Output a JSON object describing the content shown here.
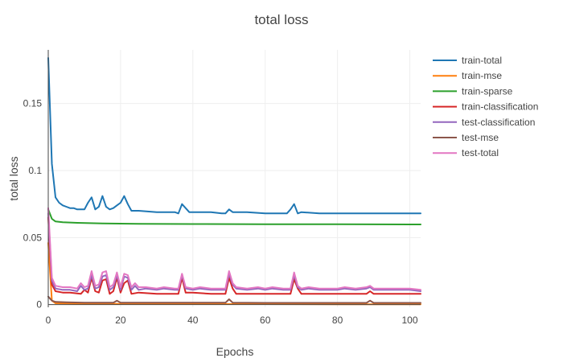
{
  "chart_data": {
    "type": "line",
    "title": "total loss",
    "xlabel": "Epochs",
    "ylabel": "total loss",
    "xlim": [
      0,
      103
    ],
    "ylim": [
      -0.002,
      0.19
    ],
    "x_ticks": [
      0,
      20,
      40,
      60,
      80,
      100
    ],
    "x_tick_labels": [
      "0",
      "20",
      "40",
      "60",
      "80",
      "100"
    ],
    "y_ticks": [
      0,
      0.05,
      0.1,
      0.15
    ],
    "y_tick_labels": [
      "0",
      "0.05",
      "0.1",
      "0.15"
    ],
    "grid": true,
    "legend_position": "right",
    "series": [
      {
        "name": "train-total",
        "color": "#1f77b4",
        "points": [
          [
            0,
            0.184
          ],
          [
            1,
            0.105
          ],
          [
            2,
            0.08
          ],
          [
            3,
            0.076
          ],
          [
            4,
            0.074
          ],
          [
            5,
            0.073
          ],
          [
            6,
            0.072
          ],
          [
            7,
            0.072
          ],
          [
            8,
            0.071
          ],
          [
            9,
            0.071
          ],
          [
            10,
            0.071
          ],
          [
            11,
            0.076
          ],
          [
            12,
            0.08
          ],
          [
            13,
            0.071
          ],
          [
            14,
            0.073
          ],
          [
            15,
            0.081
          ],
          [
            16,
            0.073
          ],
          [
            17,
            0.071
          ],
          [
            18,
            0.072
          ],
          [
            19,
            0.074
          ],
          [
            20,
            0.076
          ],
          [
            21,
            0.081
          ],
          [
            22,
            0.075
          ],
          [
            23,
            0.07
          ],
          [
            25,
            0.07
          ],
          [
            30,
            0.069
          ],
          [
            35,
            0.069
          ],
          [
            36,
            0.068
          ],
          [
            37,
            0.075
          ],
          [
            38,
            0.072
          ],
          [
            39,
            0.069
          ],
          [
            40,
            0.069
          ],
          [
            45,
            0.069
          ],
          [
            48,
            0.068
          ],
          [
            49,
            0.068
          ],
          [
            50,
            0.071
          ],
          [
            51,
            0.069
          ],
          [
            55,
            0.069
          ],
          [
            60,
            0.068
          ],
          [
            65,
            0.068
          ],
          [
            66,
            0.068
          ],
          [
            67,
            0.071
          ],
          [
            68,
            0.075
          ],
          [
            69,
            0.068
          ],
          [
            70,
            0.069
          ],
          [
            75,
            0.068
          ],
          [
            80,
            0.068
          ],
          [
            85,
            0.068
          ],
          [
            90,
            0.068
          ],
          [
            95,
            0.068
          ],
          [
            100,
            0.068
          ],
          [
            103,
            0.068
          ]
        ]
      },
      {
        "name": "train-mse",
        "color": "#ff7f0e",
        "points": [
          [
            0,
            0.046
          ],
          [
            1,
            0.003
          ],
          [
            2,
            0.001
          ],
          [
            5,
            0.0008
          ],
          [
            10,
            0.0006
          ],
          [
            20,
            0.0005
          ],
          [
            40,
            0.0004
          ],
          [
            60,
            0.0004
          ],
          [
            80,
            0.0003
          ],
          [
            103,
            0.0003
          ]
        ]
      },
      {
        "name": "train-sparse",
        "color": "#2ca02c",
        "points": [
          [
            0,
            0.071
          ],
          [
            1,
            0.064
          ],
          [
            2,
            0.062
          ],
          [
            4,
            0.0615
          ],
          [
            8,
            0.061
          ],
          [
            15,
            0.0605
          ],
          [
            25,
            0.0603
          ],
          [
            40,
            0.0601
          ],
          [
            60,
            0.06
          ],
          [
            80,
            0.0599
          ],
          [
            103,
            0.0598
          ]
        ]
      },
      {
        "name": "train-classification",
        "color": "#d62728",
        "points": [
          [
            0,
            0.065
          ],
          [
            1,
            0.015
          ],
          [
            2,
            0.01
          ],
          [
            4,
            0.009
          ],
          [
            6,
            0.009
          ],
          [
            9,
            0.008
          ],
          [
            10,
            0.011
          ],
          [
            11,
            0.009
          ],
          [
            12,
            0.02
          ],
          [
            13,
            0.01
          ],
          [
            14,
            0.009
          ],
          [
            15,
            0.018
          ],
          [
            16,
            0.019
          ],
          [
            17,
            0.008
          ],
          [
            18,
            0.01
          ],
          [
            19,
            0.02
          ],
          [
            20,
            0.009
          ],
          [
            21,
            0.016
          ],
          [
            22,
            0.018
          ],
          [
            23,
            0.008
          ],
          [
            25,
            0.009
          ],
          [
            30,
            0.008
          ],
          [
            35,
            0.008
          ],
          [
            36,
            0.008
          ],
          [
            37,
            0.02
          ],
          [
            38,
            0.009
          ],
          [
            40,
            0.009
          ],
          [
            45,
            0.008
          ],
          [
            49,
            0.008
          ],
          [
            50,
            0.02
          ],
          [
            51,
            0.012
          ],
          [
            52,
            0.008
          ],
          [
            55,
            0.008
          ],
          [
            60,
            0.008
          ],
          [
            65,
            0.008
          ],
          [
            67,
            0.008
          ],
          [
            68,
            0.019
          ],
          [
            69,
            0.012
          ],
          [
            70,
            0.008
          ],
          [
            75,
            0.008
          ],
          [
            80,
            0.008
          ],
          [
            85,
            0.008
          ],
          [
            88,
            0.008
          ],
          [
            89,
            0.01
          ],
          [
            90,
            0.008
          ],
          [
            95,
            0.008
          ],
          [
            100,
            0.008
          ],
          [
            103,
            0.008
          ]
        ]
      },
      {
        "name": "test-classification",
        "color": "#9467bd",
        "points": [
          [
            0,
            0.068
          ],
          [
            1,
            0.018
          ],
          [
            2,
            0.012
          ],
          [
            4,
            0.011
          ],
          [
            6,
            0.011
          ],
          [
            8,
            0.01
          ],
          [
            9,
            0.014
          ],
          [
            10,
            0.011
          ],
          [
            11,
            0.012
          ],
          [
            12,
            0.022
          ],
          [
            13,
            0.012
          ],
          [
            14,
            0.013
          ],
          [
            15,
            0.021
          ],
          [
            16,
            0.022
          ],
          [
            17,
            0.011
          ],
          [
            18,
            0.013
          ],
          [
            19,
            0.022
          ],
          [
            20,
            0.011
          ],
          [
            21,
            0.021
          ],
          [
            22,
            0.02
          ],
          [
            23,
            0.011
          ],
          [
            24,
            0.014
          ],
          [
            25,
            0.011
          ],
          [
            27,
            0.012
          ],
          [
            30,
            0.011
          ],
          [
            32,
            0.012
          ],
          [
            35,
            0.011
          ],
          [
            36,
            0.011
          ],
          [
            37,
            0.022
          ],
          [
            38,
            0.012
          ],
          [
            40,
            0.011
          ],
          [
            42,
            0.012
          ],
          [
            45,
            0.011
          ],
          [
            47,
            0.011
          ],
          [
            49,
            0.011
          ],
          [
            50,
            0.023
          ],
          [
            51,
            0.015
          ],
          [
            52,
            0.012
          ],
          [
            55,
            0.011
          ],
          [
            58,
            0.012
          ],
          [
            60,
            0.011
          ],
          [
            62,
            0.012
          ],
          [
            65,
            0.011
          ],
          [
            67,
            0.011
          ],
          [
            68,
            0.022
          ],
          [
            69,
            0.013
          ],
          [
            70,
            0.011
          ],
          [
            72,
            0.012
          ],
          [
            75,
            0.011
          ],
          [
            78,
            0.011
          ],
          [
            80,
            0.011
          ],
          [
            82,
            0.012
          ],
          [
            85,
            0.011
          ],
          [
            88,
            0.012
          ],
          [
            89,
            0.013
          ],
          [
            90,
            0.011
          ],
          [
            95,
            0.011
          ],
          [
            100,
            0.011
          ],
          [
            103,
            0.01
          ]
        ]
      },
      {
        "name": "test-mse",
        "color": "#8c564b",
        "points": [
          [
            0,
            0.006
          ],
          [
            1,
            0.003
          ],
          [
            2,
            0.002
          ],
          [
            5,
            0.0017
          ],
          [
            10,
            0.0015
          ],
          [
            18,
            0.0015
          ],
          [
            19,
            0.003
          ],
          [
            20,
            0.0015
          ],
          [
            30,
            0.0014
          ],
          [
            40,
            0.0014
          ],
          [
            49,
            0.0014
          ],
          [
            50,
            0.004
          ],
          [
            51,
            0.0015
          ],
          [
            60,
            0.0013
          ],
          [
            70,
            0.0013
          ],
          [
            80,
            0.0013
          ],
          [
            88,
            0.0013
          ],
          [
            89,
            0.003
          ],
          [
            90,
            0.0013
          ],
          [
            103,
            0.0013
          ]
        ]
      },
      {
        "name": "test-total",
        "color": "#e377c2",
        "points": [
          [
            0,
            0.072
          ],
          [
            1,
            0.02
          ],
          [
            2,
            0.014
          ],
          [
            4,
            0.013
          ],
          [
            6,
            0.013
          ],
          [
            8,
            0.012
          ],
          [
            9,
            0.016
          ],
          [
            10,
            0.013
          ],
          [
            11,
            0.014
          ],
          [
            12,
            0.025
          ],
          [
            13,
            0.014
          ],
          [
            14,
            0.015
          ],
          [
            15,
            0.024
          ],
          [
            16,
            0.025
          ],
          [
            17,
            0.013
          ],
          [
            18,
            0.015
          ],
          [
            19,
            0.024
          ],
          [
            20,
            0.013
          ],
          [
            21,
            0.023
          ],
          [
            22,
            0.022
          ],
          [
            23,
            0.013
          ],
          [
            24,
            0.016
          ],
          [
            25,
            0.013
          ],
          [
            27,
            0.013
          ],
          [
            30,
            0.012
          ],
          [
            32,
            0.013
          ],
          [
            35,
            0.012
          ],
          [
            36,
            0.012
          ],
          [
            37,
            0.023
          ],
          [
            38,
            0.013
          ],
          [
            40,
            0.012
          ],
          [
            42,
            0.013
          ],
          [
            45,
            0.012
          ],
          [
            47,
            0.012
          ],
          [
            49,
            0.012
          ],
          [
            50,
            0.025
          ],
          [
            51,
            0.016
          ],
          [
            52,
            0.013
          ],
          [
            55,
            0.012
          ],
          [
            58,
            0.013
          ],
          [
            60,
            0.012
          ],
          [
            62,
            0.013
          ],
          [
            65,
            0.012
          ],
          [
            67,
            0.012
          ],
          [
            68,
            0.024
          ],
          [
            69,
            0.014
          ],
          [
            70,
            0.012
          ],
          [
            72,
            0.013
          ],
          [
            75,
            0.012
          ],
          [
            78,
            0.012
          ],
          [
            80,
            0.012
          ],
          [
            82,
            0.013
          ],
          [
            85,
            0.012
          ],
          [
            88,
            0.013
          ],
          [
            89,
            0.014
          ],
          [
            90,
            0.012
          ],
          [
            95,
            0.012
          ],
          [
            100,
            0.012
          ],
          [
            103,
            0.011
          ]
        ]
      }
    ]
  }
}
